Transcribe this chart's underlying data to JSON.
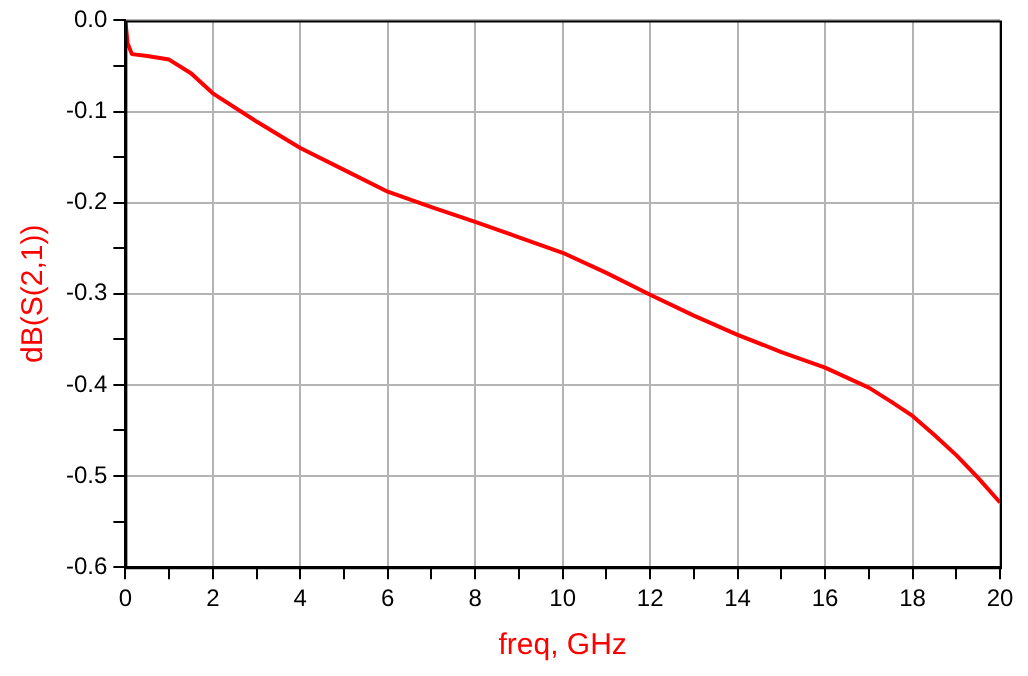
{
  "chart_data": {
    "type": "line",
    "xlabel": "freq, GHz",
    "ylabel": "dB(S(2,1))",
    "x": [
      0,
      0.05,
      0.15,
      0.5,
      1,
      1.5,
      2,
      3,
      4,
      5,
      6,
      7,
      8,
      9,
      10,
      11,
      12,
      13,
      14,
      15,
      16,
      17,
      17.5,
      18,
      18.5,
      19,
      19.5,
      20
    ],
    "series": [
      {
        "color": "#ff0000",
        "values": [
          0,
          -0.025,
          -0.037,
          -0.039,
          -0.043,
          -0.058,
          -0.08,
          -0.111,
          -0.14,
          -0.164,
          -0.188,
          -0.205,
          -0.221,
          -0.238,
          -0.255,
          -0.277,
          -0.301,
          -0.324,
          -0.345,
          -0.364,
          -0.381,
          -0.403,
          -0.418,
          -0.434,
          -0.455,
          -0.477,
          -0.502,
          -0.529
        ]
      }
    ],
    "xlim": [
      0,
      20
    ],
    "xticks": [
      0,
      {
        "value": 1,
        "label": null
      },
      2,
      {
        "value": 3,
        "label": null
      },
      4,
      {
        "value": 5,
        "label": null
      },
      6,
      {
        "value": 7,
        "label": null
      },
      8,
      {
        "value": 9,
        "label": null
      },
      10,
      {
        "value": 11,
        "label": null
      },
      12,
      {
        "value": 13,
        "label": null
      },
      14,
      {
        "value": 15,
        "label": null
      },
      16,
      {
        "value": 17,
        "label": null
      },
      18,
      {
        "value": 19,
        "label": null
      },
      20
    ],
    "ylim": [
      -0.6,
      0
    ],
    "yticks": [
      {
        "value": -0.6,
        "label": "-0.6"
      },
      {
        "value": -0.55,
        "label": null
      },
      {
        "value": -0.5,
        "label": "-0.5"
      },
      {
        "value": -0.45,
        "label": null
      },
      {
        "value": -0.4,
        "label": "-0.4"
      },
      {
        "value": -0.35,
        "label": null
      },
      {
        "value": -0.3,
        "label": "-0.3"
      },
      {
        "value": -0.25,
        "label": null
      },
      {
        "value": -0.2,
        "label": "-0.2"
      },
      {
        "value": -0.15,
        "label": null
      },
      {
        "value": -0.1,
        "label": "-0.1"
      },
      {
        "value": -0.05,
        "label": null
      },
      {
        "value": 0,
        "label": "0.0"
      }
    ],
    "grid": true,
    "legend": false,
    "marker": "none",
    "line_style": "solid"
  }
}
